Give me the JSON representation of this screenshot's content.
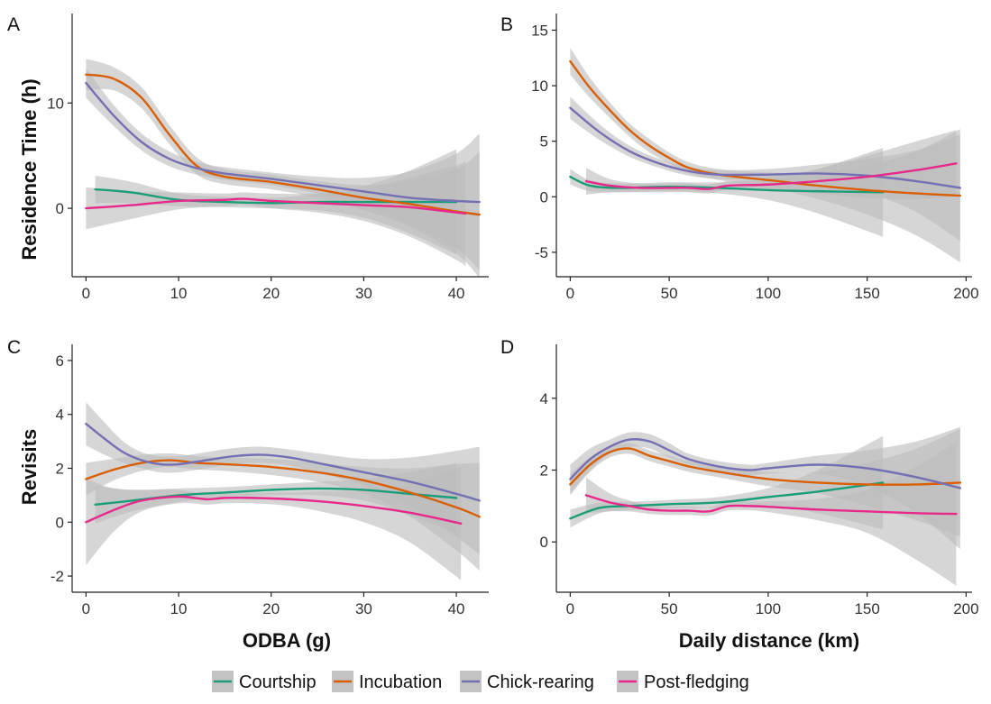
{
  "series_colors": {
    "Courtship": "#1b9e77",
    "Incubation": "#d95f02",
    "Chick-rearing": "#7570b3",
    "Post-fledging": "#e7298a"
  },
  "ribbon_color": "#bdbdbd",
  "legend": [
    "Courtship",
    "Incubation",
    "Chick-rearing",
    "Post-fledging"
  ],
  "axis_titles": {
    "residence_time": "Residence Time (h)",
    "revisits": "Revisits",
    "odba": "ODBA (g)",
    "daily_distance": "Daily distance (km)"
  },
  "chart_data": [
    {
      "panel": "A",
      "type": "line",
      "xlabel": "",
      "ylabel": "Residence Time (h)",
      "xlim": [
        -1.5,
        43.5
      ],
      "ylim": [
        -6.5,
        18.5
      ],
      "xticks": [
        0,
        10,
        20,
        30,
        40
      ],
      "yticks": [
        0,
        10
      ],
      "grid": false,
      "series": [
        {
          "name": "Courtship",
          "x": [
            1,
            5,
            10,
            15,
            20,
            25,
            30,
            35,
            40
          ],
          "y": [
            1.8,
            1.5,
            0.8,
            0.6,
            0.5,
            0.6,
            0.6,
            0.6,
            0.6
          ],
          "ci": [
            1.3,
            1.0,
            0.6,
            0.5,
            0.5,
            0.8,
            1.5,
            3.0,
            5.0
          ]
        },
        {
          "name": "Incubation",
          "x": [
            0,
            3,
            6,
            9,
            12,
            15,
            20,
            25,
            30,
            35,
            40,
            42.5
          ],
          "y": [
            12.7,
            12.3,
            10.5,
            7.0,
            4.0,
            3.0,
            2.5,
            1.8,
            1.0,
            0.4,
            -0.3,
            -0.6
          ],
          "ci": [
            1.5,
            1.1,
            1.0,
            0.9,
            0.8,
            0.7,
            0.7,
            0.8,
            1.2,
            2.2,
            4.0,
            6.0
          ]
        },
        {
          "name": "Chick-rearing",
          "x": [
            0,
            3,
            6,
            9,
            12,
            15,
            20,
            25,
            30,
            35,
            40,
            42.5
          ],
          "y": [
            11.9,
            8.8,
            6.3,
            4.7,
            3.8,
            3.3,
            2.8,
            2.2,
            1.6,
            1.0,
            0.7,
            0.6
          ],
          "ci": [
            1.4,
            1.0,
            0.8,
            0.7,
            0.6,
            0.6,
            0.6,
            0.8,
            1.3,
            2.5,
            4.5,
            6.5
          ]
        },
        {
          "name": "Post-fledging",
          "x": [
            0,
            5,
            10,
            15,
            17,
            20,
            25,
            30,
            35,
            40,
            41
          ],
          "y": [
            0.0,
            0.3,
            0.7,
            0.8,
            0.9,
            0.7,
            0.5,
            0.3,
            0.1,
            -0.4,
            -0.5
          ],
          "ci": [
            2.0,
            1.3,
            0.8,
            0.6,
            0.6,
            0.7,
            0.9,
            1.5,
            2.8,
            4.5,
            5.0
          ]
        }
      ]
    },
    {
      "panel": "B",
      "type": "line",
      "xlabel": "",
      "ylabel": "",
      "xlim": [
        -7,
        203
      ],
      "ylim": [
        -7.2,
        16.5
      ],
      "xticks": [
        0,
        50,
        100,
        150,
        200
      ],
      "yticks": [
        -5,
        0,
        5,
        10,
        15
      ],
      "grid": false,
      "series": [
        {
          "name": "Courtship",
          "x": [
            0,
            10,
            25,
            50,
            75,
            100,
            125,
            158
          ],
          "y": [
            1.8,
            1.0,
            0.8,
            0.9,
            0.8,
            0.6,
            0.5,
            0.4
          ],
          "ci": [
            0.7,
            0.5,
            0.4,
            0.4,
            0.5,
            0.9,
            2.0,
            4.0
          ]
        },
        {
          "name": "Incubation",
          "x": [
            0,
            10,
            20,
            30,
            40,
            50,
            60,
            75,
            100,
            125,
            150,
            175,
            197
          ],
          "y": [
            12.2,
            9.8,
            7.8,
            6.0,
            4.6,
            3.5,
            2.6,
            2.0,
            1.5,
            1.0,
            0.6,
            0.3,
            0.1
          ],
          "ci": [
            1.2,
            0.9,
            0.7,
            0.6,
            0.6,
            0.5,
            0.5,
            0.5,
            0.7,
            1.2,
            2.2,
            3.8,
            6.0
          ]
        },
        {
          "name": "Chick-rearing",
          "x": [
            0,
            15,
            30,
            45,
            60,
            75,
            100,
            125,
            150,
            175,
            197
          ],
          "y": [
            8.0,
            5.8,
            4.1,
            3.0,
            2.3,
            2.0,
            2.0,
            2.1,
            1.9,
            1.4,
            0.8
          ],
          "ci": [
            1.0,
            0.7,
            0.5,
            0.4,
            0.4,
            0.4,
            0.5,
            0.8,
            1.5,
            2.8,
            4.8
          ]
        },
        {
          "name": "Post-fledging",
          "x": [
            8,
            20,
            35,
            50,
            60,
            70,
            80,
            100,
            125,
            150,
            175,
            195
          ],
          "y": [
            1.4,
            1.0,
            0.8,
            0.8,
            0.8,
            0.7,
            1.0,
            1.1,
            1.4,
            1.8,
            2.4,
            3.0
          ],
          "ci": [
            1.2,
            0.6,
            0.4,
            0.4,
            0.4,
            0.4,
            0.4,
            0.6,
            1.1,
            1.9,
            2.6,
            3.0
          ]
        }
      ]
    },
    {
      "panel": "C",
      "type": "line",
      "xlabel": "ODBA (g)",
      "ylabel": "Revisits",
      "xlim": [
        -1.5,
        43.5
      ],
      "ylim": [
        -2.6,
        6.6
      ],
      "xticks": [
        0,
        10,
        20,
        30,
        40
      ],
      "yticks": [
        -2,
        0,
        2,
        4,
        6
      ],
      "grid": false,
      "series": [
        {
          "name": "Courtship",
          "x": [
            1,
            5,
            10,
            15,
            20,
            25,
            30,
            35,
            40
          ],
          "y": [
            0.65,
            0.8,
            1.0,
            1.1,
            1.2,
            1.25,
            1.2,
            1.05,
            0.9
          ],
          "ci": [
            0.7,
            0.4,
            0.25,
            0.2,
            0.2,
            0.25,
            0.4,
            0.8,
            1.3
          ]
        },
        {
          "name": "Incubation",
          "x": [
            0,
            3,
            6,
            9,
            12,
            15,
            20,
            25,
            30,
            35,
            40,
            42.5
          ],
          "y": [
            1.6,
            1.95,
            2.2,
            2.3,
            2.2,
            2.15,
            2.05,
            1.85,
            1.55,
            1.1,
            0.55,
            0.2
          ],
          "ci": [
            0.6,
            0.4,
            0.3,
            0.25,
            0.25,
            0.25,
            0.3,
            0.35,
            0.5,
            0.9,
            1.6,
            2.0
          ]
        },
        {
          "name": "Chick-rearing",
          "x": [
            0,
            2,
            4,
            6,
            8,
            10,
            13,
            16,
            19,
            22,
            25,
            30,
            35,
            40,
            42.5
          ],
          "y": [
            3.65,
            3.1,
            2.6,
            2.3,
            2.15,
            2.15,
            2.3,
            2.45,
            2.5,
            2.4,
            2.2,
            1.85,
            1.5,
            1.05,
            0.8
          ],
          "ci": [
            0.8,
            0.6,
            0.4,
            0.3,
            0.3,
            0.3,
            0.3,
            0.3,
            0.3,
            0.3,
            0.35,
            0.5,
            0.9,
            1.6,
            2.0
          ]
        },
        {
          "name": "Post-fledging",
          "x": [
            0,
            3,
            6,
            10,
            13,
            15,
            18,
            22,
            26,
            30,
            35,
            40.5
          ],
          "y": [
            0.0,
            0.45,
            0.8,
            0.95,
            0.85,
            0.9,
            0.9,
            0.85,
            0.75,
            0.6,
            0.35,
            -0.05
          ],
          "ci": [
            1.6,
            0.8,
            0.4,
            0.25,
            0.2,
            0.2,
            0.2,
            0.25,
            0.4,
            0.6,
            1.1,
            2.1
          ]
        }
      ]
    },
    {
      "panel": "D",
      "type": "line",
      "xlabel": "Daily distance (km)",
      "ylabel": "",
      "xlim": [
        -7,
        203
      ],
      "ylim": [
        -1.4,
        5.5
      ],
      "xticks": [
        0,
        50,
        100,
        150,
        200
      ],
      "yticks": [
        0,
        2,
        4
      ],
      "grid": false,
      "series": [
        {
          "name": "Courtship",
          "x": [
            0,
            15,
            30,
            50,
            75,
            100,
            125,
            158
          ],
          "y": [
            0.65,
            0.95,
            1.0,
            1.05,
            1.1,
            1.25,
            1.4,
            1.65
          ],
          "ci": [
            0.25,
            0.15,
            0.12,
            0.12,
            0.15,
            0.25,
            0.6,
            1.3
          ]
        },
        {
          "name": "Incubation",
          "x": [
            0,
            10,
            20,
            30,
            40,
            50,
            60,
            75,
            100,
            125,
            150,
            175,
            197
          ],
          "y": [
            1.6,
            2.15,
            2.5,
            2.6,
            2.4,
            2.25,
            2.1,
            1.95,
            1.75,
            1.65,
            1.6,
            1.6,
            1.65
          ],
          "ci": [
            0.3,
            0.2,
            0.15,
            0.15,
            0.15,
            0.15,
            0.15,
            0.15,
            0.2,
            0.3,
            0.6,
            1.0,
            1.5
          ]
        },
        {
          "name": "Chick-rearing",
          "x": [
            0,
            10,
            20,
            30,
            40,
            50,
            60,
            75,
            90,
            100,
            125,
            150,
            175,
            197
          ],
          "y": [
            1.75,
            2.3,
            2.65,
            2.85,
            2.8,
            2.55,
            2.3,
            2.1,
            2.0,
            2.05,
            2.15,
            2.05,
            1.8,
            1.5
          ],
          "ci": [
            0.4,
            0.3,
            0.2,
            0.2,
            0.2,
            0.2,
            0.15,
            0.15,
            0.15,
            0.15,
            0.25,
            0.5,
            1.0,
            1.7
          ]
        },
        {
          "name": "Post-fledging",
          "x": [
            8,
            20,
            30,
            40,
            50,
            60,
            70,
            80,
            90,
            100,
            125,
            150,
            175,
            195
          ],
          "y": [
            1.3,
            1.1,
            1.0,
            0.9,
            0.87,
            0.87,
            0.85,
            1.0,
            1.0,
            0.98,
            0.9,
            0.85,
            0.8,
            0.78
          ],
          "ci": [
            0.5,
            0.25,
            0.15,
            0.12,
            0.12,
            0.12,
            0.12,
            0.12,
            0.12,
            0.15,
            0.3,
            0.6,
            1.3,
            2.0
          ]
        }
      ]
    }
  ]
}
